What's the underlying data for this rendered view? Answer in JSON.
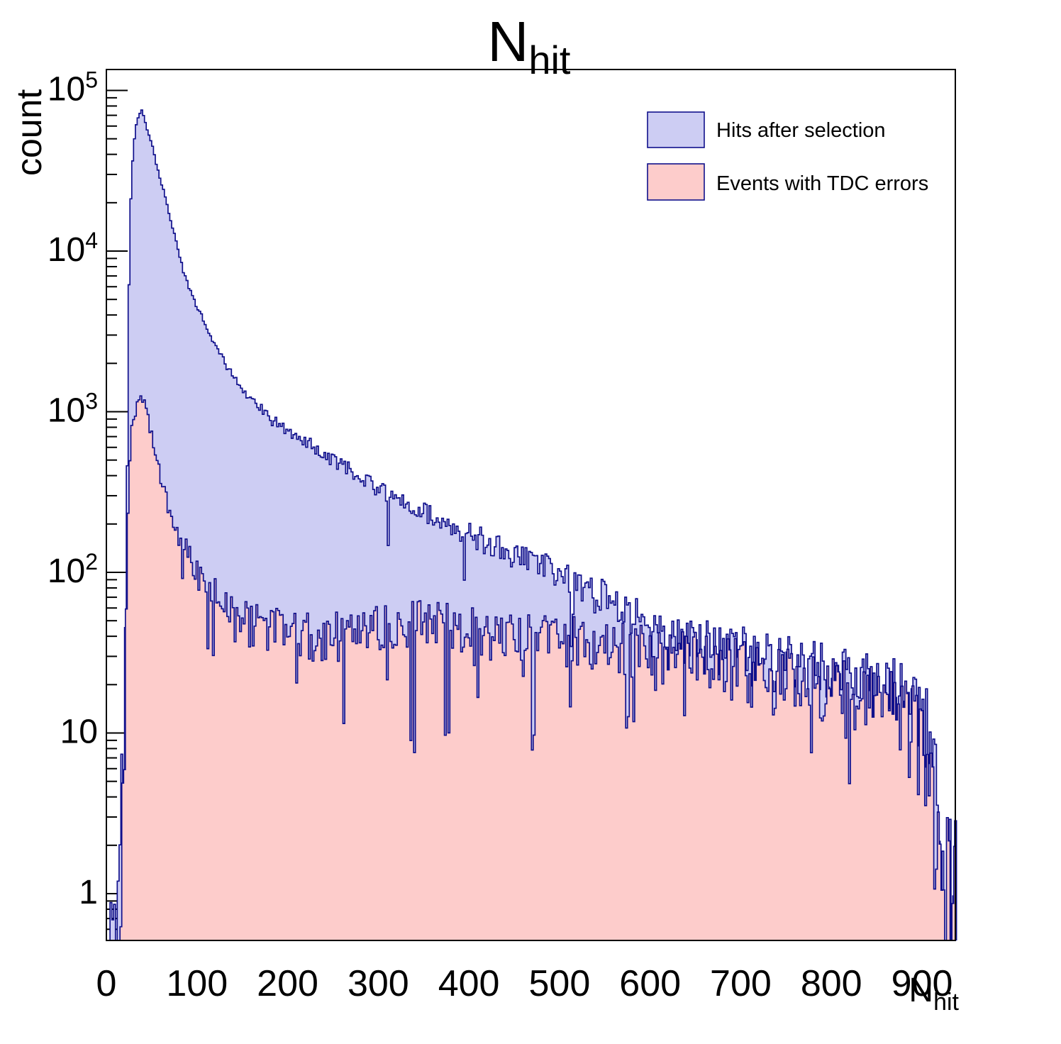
{
  "title": {
    "main": "N",
    "sub": "hit"
  },
  "axes": {
    "x": {
      "label_main": "N",
      "label_sub": "hit",
      "min": 0,
      "max": 937,
      "major_tick_interval": 100,
      "minor_tick_interval": 20,
      "tick_labels": [
        "0",
        "100",
        "200",
        "300",
        "400",
        "500",
        "600",
        "700",
        "800",
        "900"
      ]
    },
    "y": {
      "label": "count",
      "scale": "log",
      "min": 0.52,
      "max": 136000,
      "tick_labels": [
        {
          "value": 1,
          "base": "1",
          "exp": ""
        },
        {
          "value": 10,
          "base": "10",
          "exp": ""
        },
        {
          "value": 100,
          "base": "10",
          "exp": "2"
        },
        {
          "value": 1000,
          "base": "10",
          "exp": "3"
        },
        {
          "value": 10000,
          "base": "10",
          "exp": "4"
        },
        {
          "value": 100000,
          "base": "10",
          "exp": "5"
        }
      ]
    }
  },
  "legend": {
    "items": [
      {
        "label": "Hits after selection",
        "fill": "#cdcdf3"
      },
      {
        "label": "Events with TDC errors",
        "fill": "#fdcccb"
      }
    ]
  },
  "style": {
    "line_color": "#10108c",
    "frame_color": "#000000",
    "background": "#ffffff",
    "blue_fill": "#cdcdf3",
    "pink_fill": "#fdcccb"
  },
  "chart_data": {
    "type": "bar",
    "subtype": "overlaid-step-histograms",
    "title": "N_hit",
    "xlabel": "N_hit",
    "ylabel": "count",
    "yscale": "log",
    "xlim": [
      0,
      937
    ],
    "ylim": [
      0.52,
      136000
    ],
    "bin_width": 2,
    "noise_coeff": 2.3,
    "legend_position": "top-right",
    "grid": false,
    "series": [
      {
        "name": "Hits after selection",
        "fill": "#cdcdf3",
        "line": "#10108c",
        "seed": 91,
        "anchors": [
          [
            4,
            1
          ],
          [
            8,
            1
          ],
          [
            12,
            1
          ],
          [
            15,
            2
          ],
          [
            17,
            4
          ],
          [
            19,
            9
          ],
          [
            20,
            16
          ],
          [
            21,
            45
          ],
          [
            22,
            130
          ],
          [
            23,
            420
          ],
          [
            24,
            1600
          ],
          [
            25,
            6000
          ],
          [
            26,
            14000
          ],
          [
            27,
            21000
          ],
          [
            28,
            30000
          ],
          [
            30,
            45000
          ],
          [
            33,
            61000
          ],
          [
            36,
            70000
          ],
          [
            39,
            75000
          ],
          [
            42,
            67000
          ],
          [
            45,
            57000
          ],
          [
            48,
            50000
          ],
          [
            51,
            45000
          ],
          [
            55,
            35000
          ],
          [
            60,
            27000
          ],
          [
            64,
            23000
          ],
          [
            70,
            16000
          ],
          [
            77,
            11500
          ],
          [
            85,
            7500
          ],
          [
            95,
            5200
          ],
          [
            103,
            4200
          ],
          [
            115,
            2900
          ],
          [
            129,
            2100
          ],
          [
            140,
            1650
          ],
          [
            155,
            1300
          ],
          [
            170,
            1060
          ],
          [
            181,
            900
          ],
          [
            197,
            790
          ],
          [
            207,
            710
          ],
          [
            223,
            640
          ],
          [
            240,
            540
          ],
          [
            255,
            480
          ],
          [
            275,
            420
          ],
          [
            300,
            335
          ],
          [
            320,
            285
          ],
          [
            353,
            238
          ],
          [
            380,
            200
          ],
          [
            400,
            176
          ],
          [
            426,
            150
          ],
          [
            450,
            132
          ],
          [
            470,
            117
          ],
          [
            500,
            97
          ],
          [
            520,
            87
          ],
          [
            548,
            71
          ],
          [
            570,
            59
          ],
          [
            600,
            52
          ],
          [
            634,
            41
          ],
          [
            666,
            37
          ],
          [
            700,
            33
          ],
          [
            730,
            30
          ],
          [
            770,
            27
          ],
          [
            800,
            24
          ],
          [
            830,
            22
          ],
          [
            860,
            20
          ],
          [
            880,
            18
          ],
          [
            900,
            16
          ],
          [
            908,
            10
          ],
          [
            914,
            5
          ],
          [
            918,
            2.5
          ],
          [
            922,
            1.2
          ],
          [
            928,
            1
          ],
          [
            937,
            1
          ]
        ]
      },
      {
        "name": "Events with TDC errors",
        "fill": "#fdcccb",
        "line": "#10108c",
        "seed": 214,
        "anchors": [
          [
            15,
            1
          ],
          [
            17,
            3
          ],
          [
            19,
            8
          ],
          [
            21,
            30
          ],
          [
            23,
            120
          ],
          [
            25,
            420
          ],
          [
            27,
            700
          ],
          [
            29,
            850
          ],
          [
            32,
            1000
          ],
          [
            35,
            1120
          ],
          [
            39,
            1250
          ],
          [
            42,
            1120
          ],
          [
            45,
            950
          ],
          [
            48,
            800
          ],
          [
            52,
            620
          ],
          [
            58,
            430
          ],
          [
            64,
            310
          ],
          [
            70,
            235
          ],
          [
            77,
            190
          ],
          [
            85,
            152
          ],
          [
            95,
            118
          ],
          [
            103,
            98
          ],
          [
            110,
            88
          ],
          [
            119,
            79
          ],
          [
            130,
            67
          ],
          [
            140,
            59
          ],
          [
            150,
            53
          ],
          [
            165,
            48
          ],
          [
            180,
            46
          ],
          [
            200,
            44
          ],
          [
            220,
            42
          ],
          [
            240,
            41
          ],
          [
            260,
            42
          ],
          [
            280,
            44
          ],
          [
            300,
            46
          ],
          [
            320,
            48
          ],
          [
            340,
            51
          ],
          [
            360,
            51
          ],
          [
            380,
            48
          ],
          [
            400,
            46
          ],
          [
            420,
            44
          ],
          [
            440,
            42
          ],
          [
            460,
            40
          ],
          [
            480,
            40
          ],
          [
            500,
            41
          ],
          [
            530,
            38
          ],
          [
            560,
            36
          ],
          [
            590,
            34
          ],
          [
            620,
            32
          ],
          [
            650,
            30
          ],
          [
            680,
            28
          ],
          [
            710,
            26
          ],
          [
            740,
            24
          ],
          [
            770,
            22
          ],
          [
            800,
            20
          ],
          [
            830,
            18
          ],
          [
            860,
            16
          ],
          [
            880,
            14
          ],
          [
            895,
            11
          ],
          [
            905,
            8
          ],
          [
            912,
            4
          ],
          [
            917,
            2
          ],
          [
            921,
            1.2
          ],
          [
            929,
            1
          ],
          [
            937,
            0.9
          ]
        ]
      }
    ]
  }
}
